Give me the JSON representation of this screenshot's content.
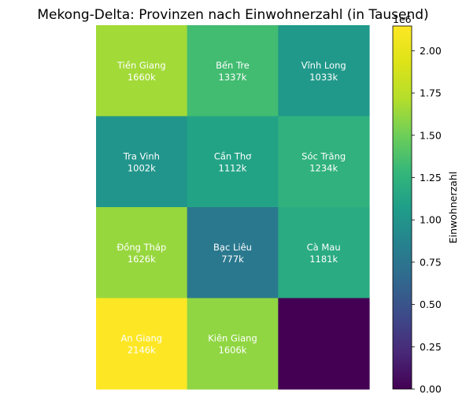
{
  "chart_data": {
    "type": "heatmap",
    "title": "Mekong-Delta: Provinzen nach Einwohnerzahl (in Tausend)",
    "rows": 4,
    "cols": 3,
    "cells": [
      {
        "label": "Tiền Giang",
        "value": 1660,
        "text": "1660k",
        "row": 0,
        "col": 0
      },
      {
        "label": "Bến Tre",
        "value": 1337,
        "text": "1337k",
        "row": 0,
        "col": 1
      },
      {
        "label": "Vĩnh Long",
        "value": 1033,
        "text": "1033k",
        "row": 0,
        "col": 2
      },
      {
        "label": "Tra Vinh",
        "value": 1002,
        "text": "1002k",
        "row": 1,
        "col": 0
      },
      {
        "label": "Cần Thơ",
        "value": 1112,
        "text": "1112k",
        "row": 1,
        "col": 1
      },
      {
        "label": "Sóc Trăng",
        "value": 1234,
        "text": "1234k",
        "row": 1,
        "col": 2
      },
      {
        "label": "Đồng Tháp",
        "value": 1626,
        "text": "1626k",
        "row": 2,
        "col": 0
      },
      {
        "label": "Bạc Liêu",
        "value": 777,
        "text": "777k",
        "row": 2,
        "col": 1
      },
      {
        "label": "Cà Mau",
        "value": 1181,
        "text": "1181k",
        "row": 2,
        "col": 2
      },
      {
        "label": "An Giang",
        "value": 2146,
        "text": "2146k",
        "row": 3,
        "col": 0
      },
      {
        "label": "Kiên Giang",
        "value": 1606,
        "text": "1606k",
        "row": 3,
        "col": 1
      },
      {
        "label": "",
        "value": 0,
        "text": "",
        "row": 3,
        "col": 2
      }
    ],
    "colorbar": {
      "label": "Einwohnerzahl",
      "offset_text": "1e6",
      "range": [
        0,
        2146000
      ],
      "ticks": [
        0,
        0.25,
        0.5,
        0.75,
        1.0,
        1.25,
        1.5,
        1.75,
        2.0
      ],
      "tick_labels": [
        "0.00",
        "0.25",
        "0.50",
        "0.75",
        "1.00",
        "1.25",
        "1.50",
        "1.75",
        "2.00"
      ],
      "colormap": "viridis"
    }
  }
}
